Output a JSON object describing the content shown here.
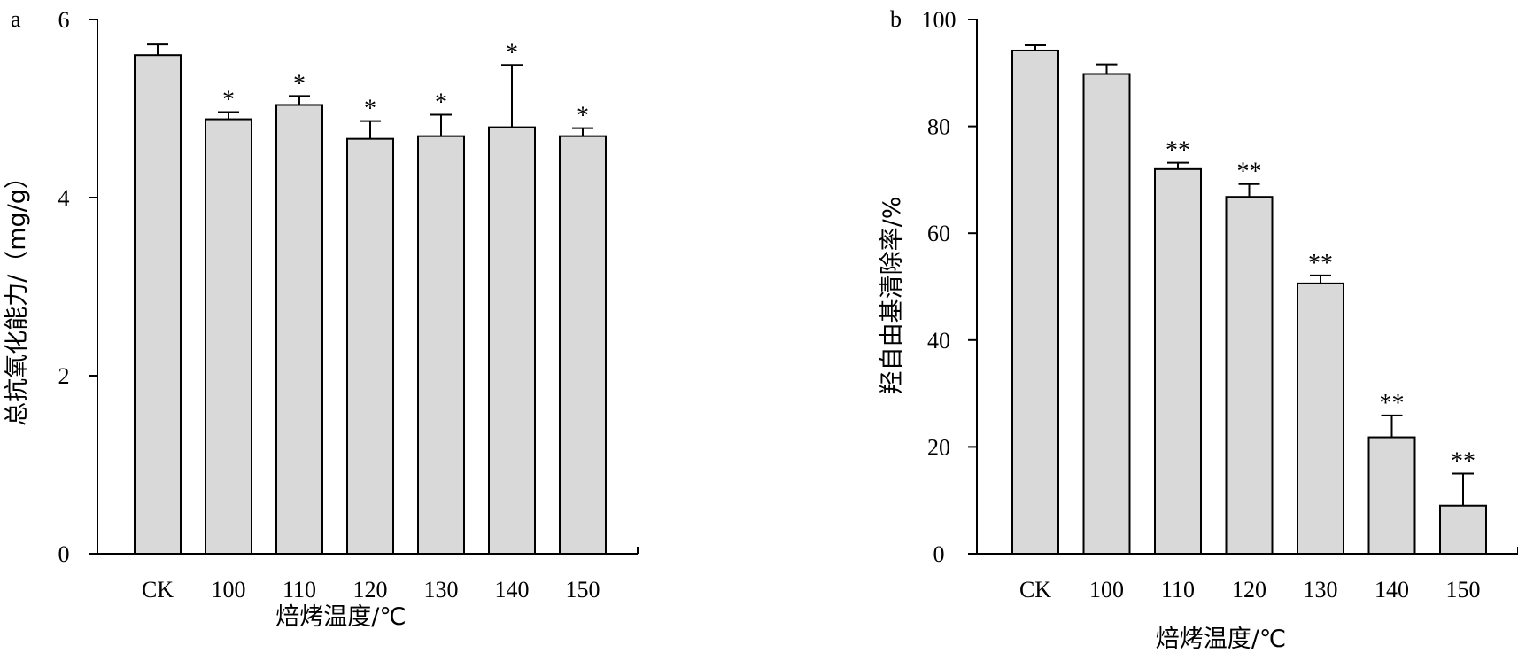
{
  "chart_data": [
    {
      "type": "bar",
      "panel_label": "a",
      "categories": [
        "CK",
        "100",
        "110",
        "120",
        "130",
        "140",
        "150"
      ],
      "values": [
        5.6,
        4.88,
        5.04,
        4.66,
        4.69,
        4.79,
        4.69
      ],
      "errors": [
        0.12,
        0.08,
        0.1,
        0.2,
        0.24,
        0.7,
        0.09
      ],
      "significance": [
        "",
        "*",
        "*",
        "*",
        "*",
        "*",
        "*"
      ],
      "xlabel": "焙烤温度/℃",
      "ylabel": "总抗氧化能力/（mg/g）",
      "ylim": [
        0,
        6
      ],
      "yticks": [
        "0",
        "2",
        "4",
        "6"
      ],
      "grid": false
    },
    {
      "type": "bar",
      "panel_label": "b",
      "categories": [
        "CK",
        "100",
        "110",
        "120",
        "130",
        "140",
        "150"
      ],
      "values": [
        94.2,
        89.8,
        72.0,
        66.8,
        50.6,
        21.8,
        9.0
      ],
      "errors": [
        1.0,
        1.8,
        1.2,
        2.4,
        1.5,
        4.1,
        6.0
      ],
      "significance": [
        "",
        "",
        "**",
        "**",
        "**",
        "**",
        "**"
      ],
      "xlabel": "焙烤温度/℃",
      "ylabel": "羟自由基清除率/%",
      "ylim": [
        0,
        100
      ],
      "yticks": [
        "0",
        "20",
        "40",
        "60",
        "80",
        "100"
      ],
      "grid": false
    }
  ]
}
